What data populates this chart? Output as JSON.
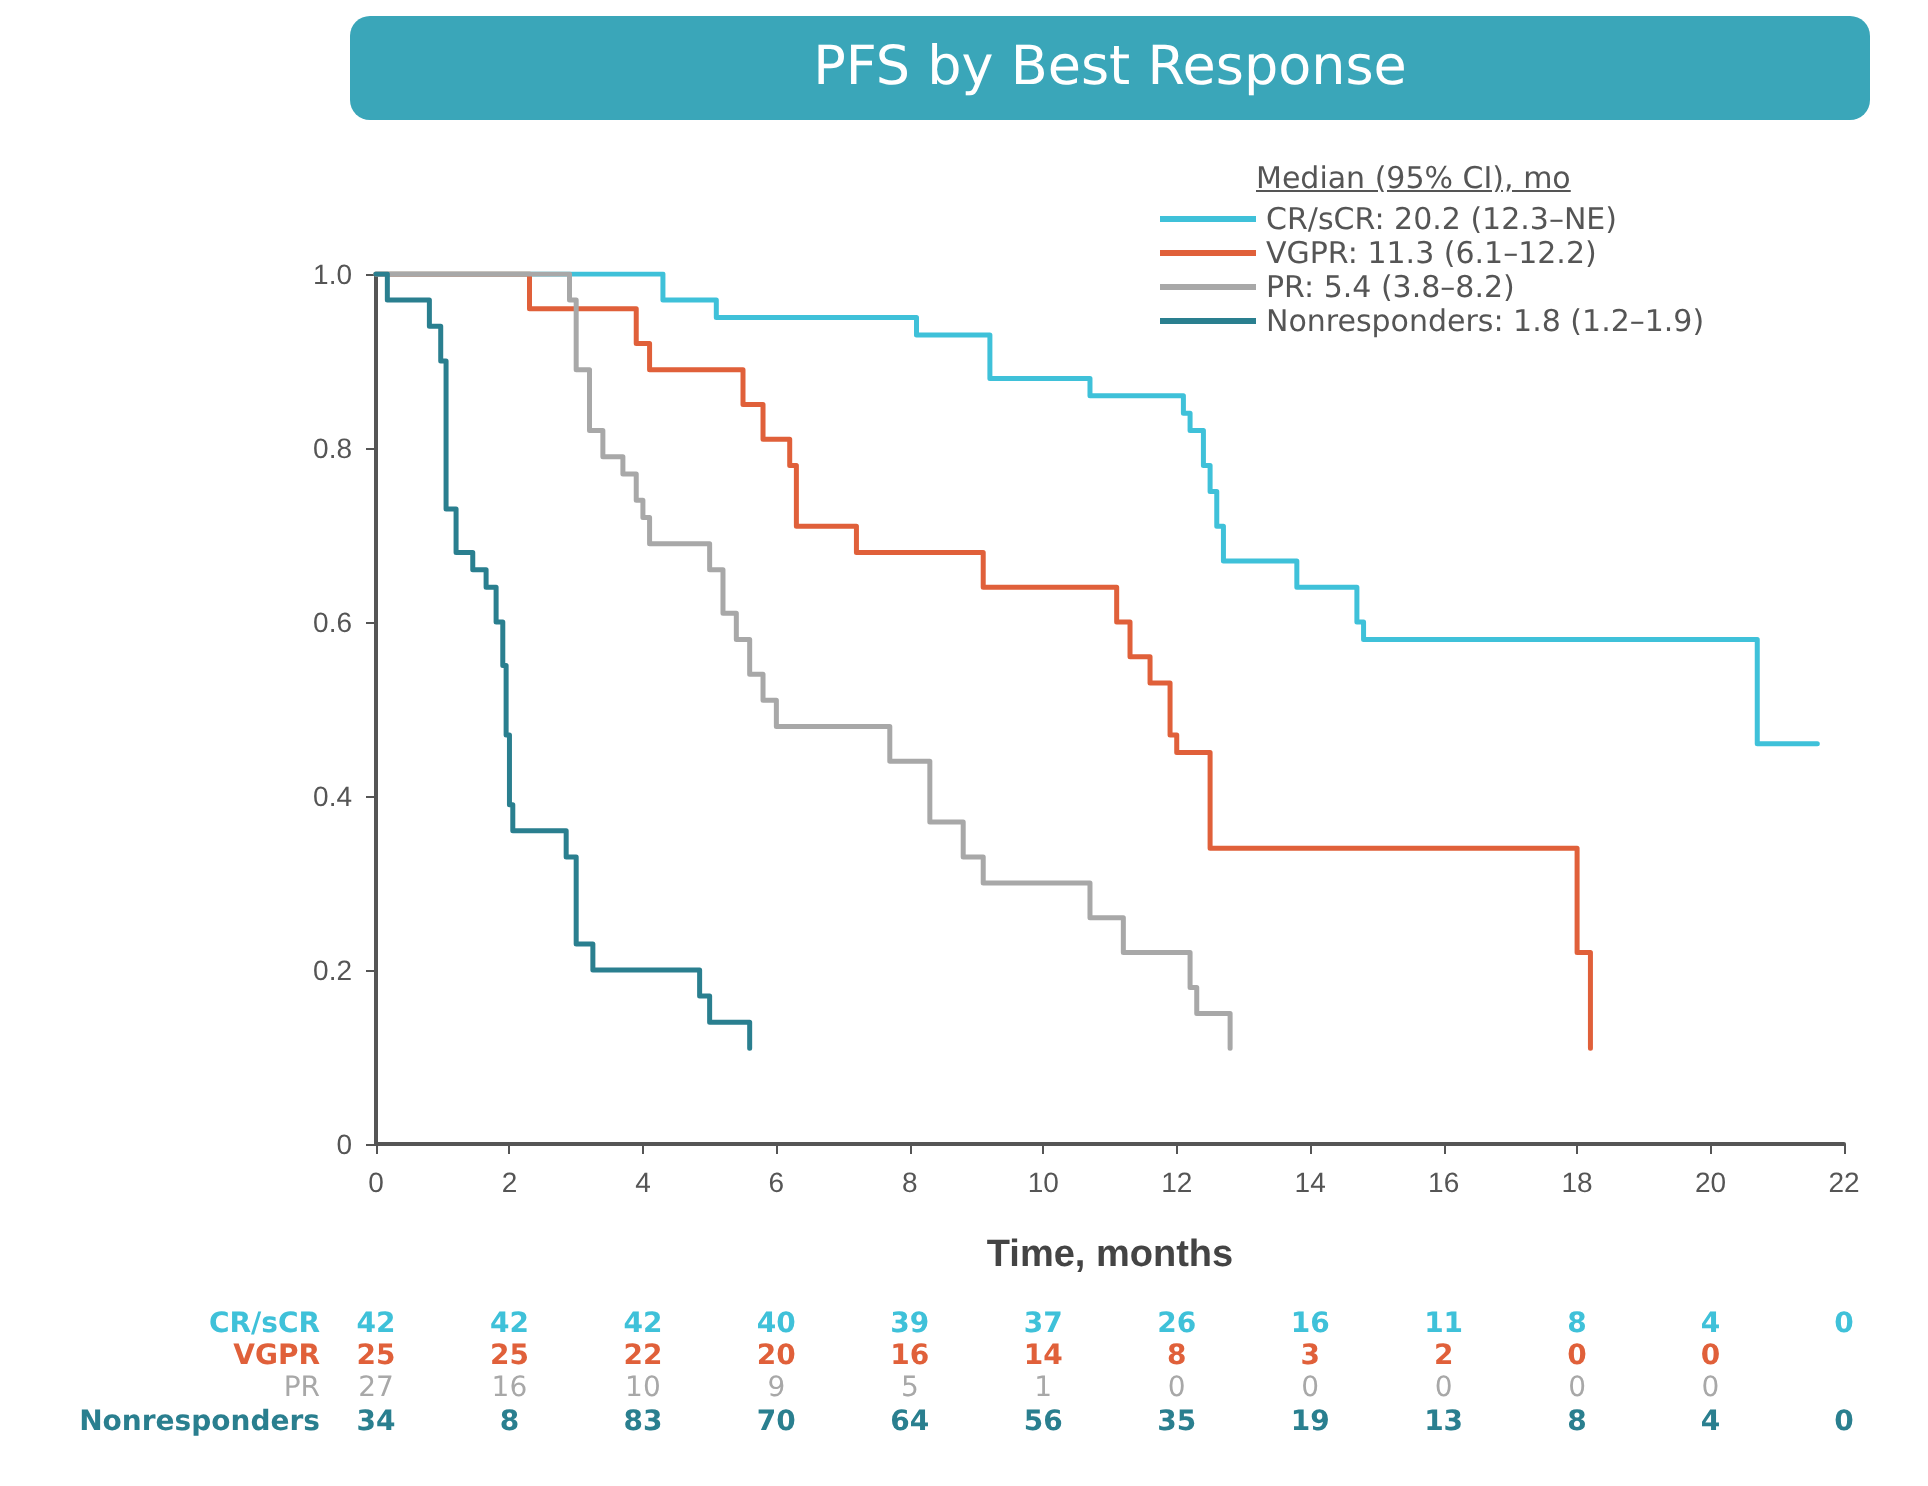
{
  "chart_data": {
    "type": "step",
    "title": "PFS by Best Response",
    "xlabel": "Time, months",
    "legend_title": "Median (95% CI), mo",
    "legend": "top right",
    "grid": false,
    "marker": "none",
    "line_style": "solid",
    "xlim": [
      0,
      22
    ],
    "xticks": [
      0,
      2,
      4,
      6,
      8,
      10,
      12,
      14,
      16,
      18,
      20,
      22
    ],
    "ylim": [
      0,
      1
    ],
    "yticks": [
      0,
      0.2,
      0.4,
      0.6,
      0.8,
      {
        "value": 1,
        "label": "1.0"
      }
    ],
    "series": [
      {
        "name": "CR/sCR: 20.2 (12.3–NE)",
        "color": "#3fc1d9",
        "x": [
          0,
          4.3,
          5.1,
          8.1,
          9.2,
          10.7,
          12.1,
          12.2,
          12.4,
          12.5,
          12.6,
          12.7,
          13.8,
          14.7,
          14.8,
          20.7,
          21.6
        ],
        "values": [
          1,
          0.97,
          0.95,
          0.93,
          0.88,
          0.86,
          0.84,
          0.82,
          0.78,
          0.75,
          0.71,
          0.67,
          0.64,
          0.6,
          0.58,
          0.46,
          0.46
        ]
      },
      {
        "name": "VGPR: 11.3 (6.1–12.2)",
        "color": "#e0603a",
        "x": [
          0,
          2.3,
          3.9,
          4.1,
          5.5,
          5.8,
          6.2,
          6.3,
          7.2,
          9.1,
          11.1,
          11.3,
          11.6,
          11.9,
          12.0,
          12.5,
          18.0,
          18.2
        ],
        "values": [
          1,
          0.96,
          0.92,
          0.89,
          0.85,
          0.81,
          0.78,
          0.71,
          0.68,
          0.64,
          0.6,
          0.56,
          0.53,
          0.47,
          0.45,
          0.34,
          0.22,
          0.11
        ]
      },
      {
        "name": "PR: 5.4 (3.8–8.2)",
        "color": "#a8a8a8",
        "x": [
          0,
          2.9,
          3.0,
          3.2,
          3.4,
          3.7,
          3.9,
          4.0,
          4.1,
          5.0,
          5.2,
          5.4,
          5.6,
          5.8,
          6.0,
          7.7,
          8.3,
          8.8,
          9.1,
          10.7,
          11.2,
          12.2,
          12.3,
          12.8
        ],
        "values": [
          1,
          0.97,
          0.89,
          0.82,
          0.79,
          0.77,
          0.74,
          0.72,
          0.69,
          0.66,
          0.61,
          0.58,
          0.54,
          0.51,
          0.48,
          0.44,
          0.37,
          0.33,
          0.3,
          0.26,
          0.22,
          0.18,
          0.15,
          0.11
        ]
      },
      {
        "name": "Nonresponders: 1.8 (1.2–1.9)",
        "color": "#2a7f8f",
        "x": [
          0,
          0.17,
          0.8,
          0.97,
          1.05,
          1.2,
          1.45,
          1.65,
          1.8,
          1.9,
          1.95,
          2.0,
          2.05,
          2.85,
          3.0,
          3.25,
          4.85,
          5.0,
          5.6
        ],
        "values": [
          1,
          0.97,
          0.94,
          0.9,
          0.73,
          0.68,
          0.66,
          0.64,
          0.6,
          0.55,
          0.47,
          0.39,
          0.36,
          0.33,
          0.23,
          0.2,
          0.17,
          0.14,
          0.11
        ]
      }
    ],
    "annotations": [
      "CR/sCR",
      "42 42 42 40 39 37 26 16 11 8 4 0",
      "VGPR",
      "25 25 22 20 16 14 8 3 2 0 0",
      "PR",
      "27 16 10 9 5 1 0 0 0 0 0",
      "Nonresponders",
      "34 8 83 70 64 56 35 19 13 8 4 0"
    ]
  }
}
